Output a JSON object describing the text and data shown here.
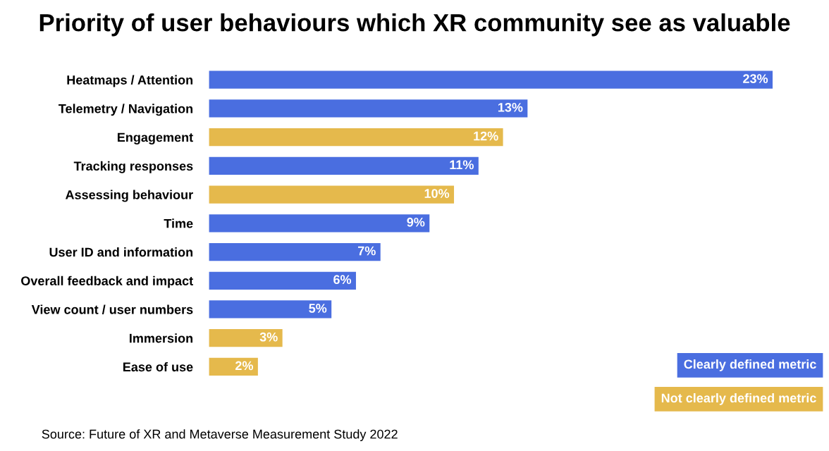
{
  "chart_data": {
    "type": "bar",
    "orientation": "horizontal",
    "title": "Priority of user behaviours which XR community see as valuable",
    "categories": [
      "Heatmaps / Attention",
      "Telemetry / Navigation",
      "Engagement",
      "Tracking responses",
      "Assessing behaviour",
      "Time",
      "User ID and information",
      "Overall feedback and impact",
      "View count / user numbers",
      "Immersion",
      "Ease of use"
    ],
    "series": [
      {
        "name": "Clearly defined metric",
        "color": "#4a6ee0",
        "values": [
          23,
          13,
          null,
          11,
          null,
          9,
          7,
          6,
          5,
          null,
          null
        ],
        "value_labels": [
          "23%",
          "13%",
          null,
          "11%",
          null,
          "9%",
          "7%",
          "6%",
          "5%",
          null,
          null
        ]
      },
      {
        "name": "Not clearly defined metric",
        "color": "#e5b94c",
        "values": [
          null,
          null,
          12,
          null,
          10,
          null,
          null,
          null,
          null,
          3,
          2
        ],
        "value_labels": [
          null,
          null,
          "12%",
          null,
          "10%",
          null,
          null,
          null,
          null,
          "3%",
          "2%"
        ]
      }
    ],
    "legend": "bottom right",
    "grid": false,
    "annotations": [
      "Source: Future of XR and Metaverse Measurement Study 2022"
    ]
  }
}
